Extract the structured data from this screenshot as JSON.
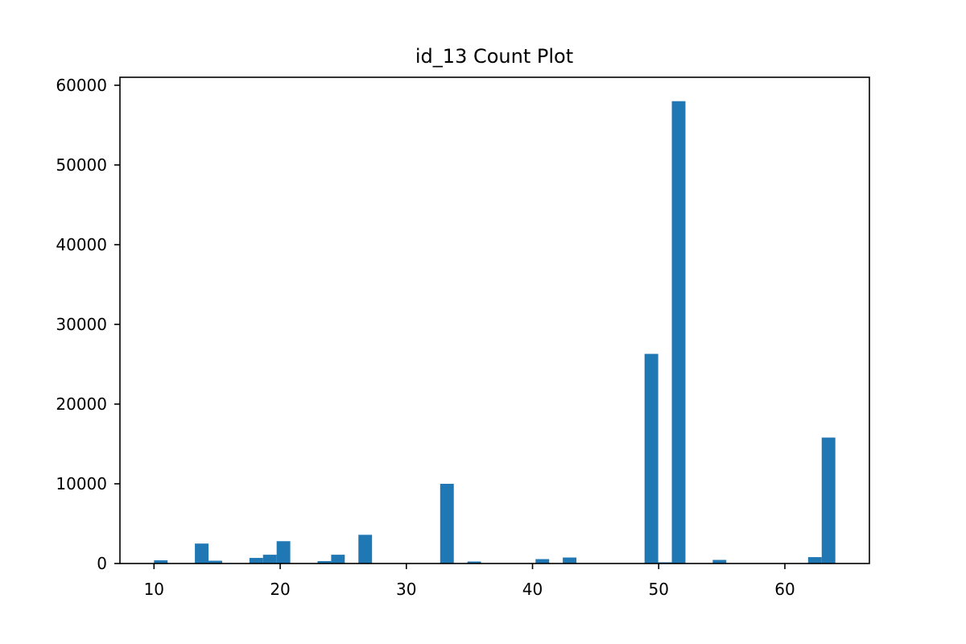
{
  "chart_data": {
    "type": "bar",
    "title": "id_13 Count Plot",
    "xlabel": "",
    "ylabel": "",
    "xlim": [
      7.3,
      66.7
    ],
    "ylim": [
      0,
      61000
    ],
    "x_ticks": [
      10,
      20,
      30,
      40,
      50,
      60
    ],
    "y_ticks": [
      0,
      10000,
      20000,
      30000,
      40000,
      50000,
      60000
    ],
    "bin_width": 1.08,
    "bar_color": "#1f77b4",
    "grid": false,
    "legend": "none",
    "bins": [
      {
        "x": 10.54,
        "count": 400
      },
      {
        "x": 13.78,
        "count": 2500
      },
      {
        "x": 14.86,
        "count": 350
      },
      {
        "x": 18.1,
        "count": 700
      },
      {
        "x": 19.18,
        "count": 1100
      },
      {
        "x": 20.26,
        "count": 2800
      },
      {
        "x": 23.5,
        "count": 300
      },
      {
        "x": 24.58,
        "count": 1100
      },
      {
        "x": 26.74,
        "count": 3600
      },
      {
        "x": 33.22,
        "count": 10000
      },
      {
        "x": 35.38,
        "count": 250
      },
      {
        "x": 40.78,
        "count": 550
      },
      {
        "x": 42.94,
        "count": 750
      },
      {
        "x": 49.42,
        "count": 26300
      },
      {
        "x": 50.5,
        "count": 150
      },
      {
        "x": 51.58,
        "count": 58000
      },
      {
        "x": 54.82,
        "count": 450
      },
      {
        "x": 62.38,
        "count": 800
      },
      {
        "x": 63.46,
        "count": 15800
      }
    ]
  }
}
